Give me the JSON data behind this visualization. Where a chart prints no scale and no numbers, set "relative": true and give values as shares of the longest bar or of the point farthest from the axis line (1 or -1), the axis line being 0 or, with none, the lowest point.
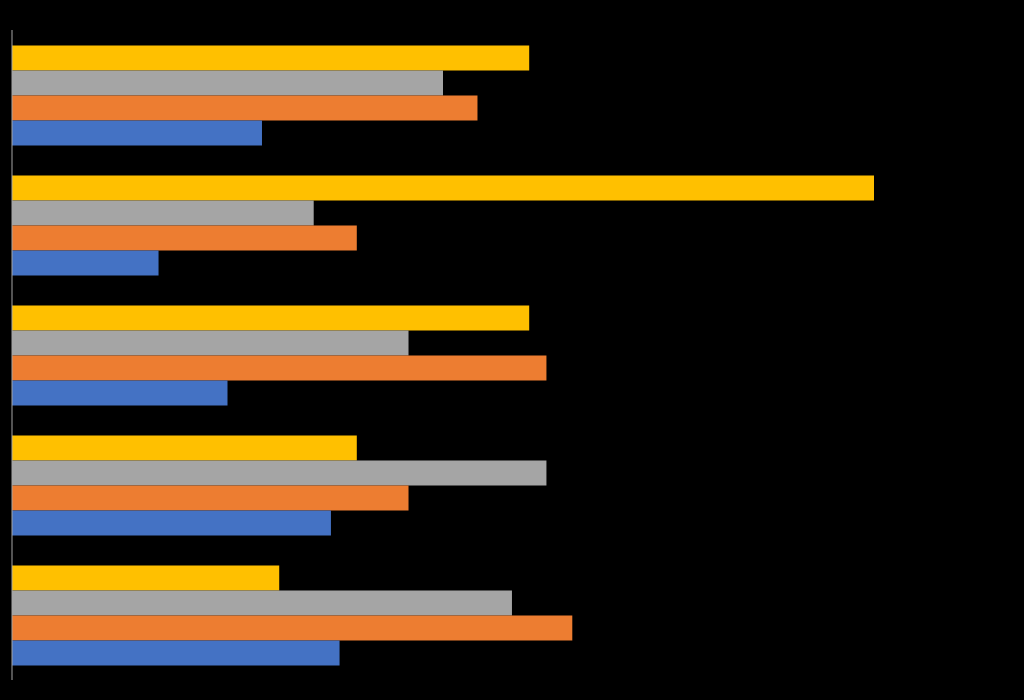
{
  "chart_data": {
    "type": "bar",
    "orientation": "horizontal",
    "relative": true,
    "categories": [
      null,
      null,
      null,
      null,
      null
    ],
    "series": [
      {
        "color": "#ffc000",
        "values": [
          0.6,
          1,
          0.6,
          0.4,
          0.31
        ]
      },
      {
        "color": "#a5a5a5",
        "values": [
          0.5,
          0.35,
          0.46,
          0.62,
          0.58
        ]
      },
      {
        "color": "#ed7d31",
        "values": [
          0.54,
          0.4,
          0.62,
          0.46,
          0.65
        ]
      },
      {
        "color": "#4472c4",
        "values": [
          0.29,
          0.17,
          0.25,
          0.37,
          0.38
        ]
      }
    ]
  }
}
